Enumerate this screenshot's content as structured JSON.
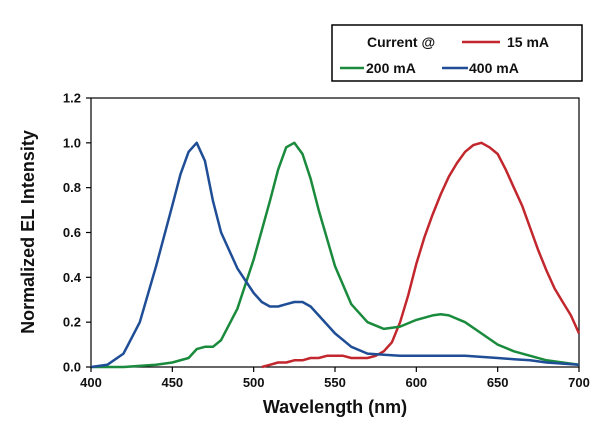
{
  "chart_data": {
    "type": "line",
    "xlabel": "Wavelength (nm)",
    "ylabel": "Normalized EL Intensity",
    "xlim": [
      400,
      700
    ],
    "ylim": [
      0,
      1.2
    ],
    "x_ticks": [
      "400",
      "450",
      "500",
      "550",
      "600",
      "650",
      "700"
    ],
    "y_ticks": [
      "0.0",
      "0.2",
      "0.4",
      "0.6",
      "0.8",
      "1.0",
      "1.2"
    ],
    "grid": false,
    "legend": {
      "position": "top-right",
      "title": "Current @",
      "entries": [
        "15 mA",
        "200 mA",
        "400 mA"
      ]
    },
    "series": [
      {
        "name": "15 mA",
        "color": "#c1272d",
        "x": [
          505,
          510,
          515,
          520,
          525,
          530,
          535,
          540,
          545,
          550,
          555,
          560,
          565,
          570,
          575,
          580,
          585,
          590,
          595,
          600,
          605,
          610,
          615,
          620,
          625,
          630,
          635,
          640,
          645,
          650,
          655,
          660,
          665,
          670,
          675,
          680,
          685,
          690,
          695,
          700
        ],
        "values": [
          0.0,
          0.01,
          0.02,
          0.02,
          0.03,
          0.03,
          0.04,
          0.04,
          0.05,
          0.05,
          0.05,
          0.04,
          0.04,
          0.04,
          0.05,
          0.07,
          0.11,
          0.2,
          0.32,
          0.46,
          0.58,
          0.68,
          0.77,
          0.85,
          0.91,
          0.96,
          0.99,
          1.0,
          0.98,
          0.95,
          0.88,
          0.8,
          0.72,
          0.62,
          0.52,
          0.43,
          0.35,
          0.29,
          0.23,
          0.15
        ]
      },
      {
        "name": "200 mA",
        "color": "#1a8a3c",
        "x": [
          400,
          420,
          440,
          450,
          460,
          465,
          470,
          475,
          480,
          490,
          500,
          510,
          515,
          520,
          525,
          530,
          535,
          540,
          550,
          560,
          570,
          580,
          590,
          600,
          610,
          615,
          620,
          630,
          640,
          650,
          660,
          670,
          680,
          690,
          700
        ],
        "values": [
          0.0,
          0.0,
          0.01,
          0.02,
          0.04,
          0.08,
          0.09,
          0.09,
          0.12,
          0.26,
          0.48,
          0.74,
          0.88,
          0.98,
          1.0,
          0.95,
          0.84,
          0.7,
          0.45,
          0.28,
          0.2,
          0.17,
          0.18,
          0.21,
          0.23,
          0.235,
          0.23,
          0.2,
          0.15,
          0.1,
          0.07,
          0.05,
          0.03,
          0.02,
          0.01
        ]
      },
      {
        "name": "400 mA",
        "color": "#1f4e96",
        "x": [
          400,
          410,
          420,
          430,
          440,
          450,
          455,
          460,
          465,
          470,
          475,
          480,
          490,
          500,
          505,
          510,
          515,
          520,
          525,
          530,
          535,
          540,
          550,
          560,
          570,
          580,
          590,
          600,
          610,
          620,
          630,
          640,
          650,
          660,
          670,
          680,
          690,
          700
        ],
        "values": [
          0.0,
          0.01,
          0.06,
          0.2,
          0.45,
          0.72,
          0.86,
          0.96,
          1.0,
          0.92,
          0.74,
          0.6,
          0.44,
          0.33,
          0.29,
          0.27,
          0.27,
          0.28,
          0.29,
          0.29,
          0.27,
          0.23,
          0.15,
          0.09,
          0.06,
          0.055,
          0.05,
          0.05,
          0.05,
          0.05,
          0.05,
          0.045,
          0.04,
          0.035,
          0.03,
          0.02,
          0.015,
          0.01
        ]
      }
    ]
  }
}
